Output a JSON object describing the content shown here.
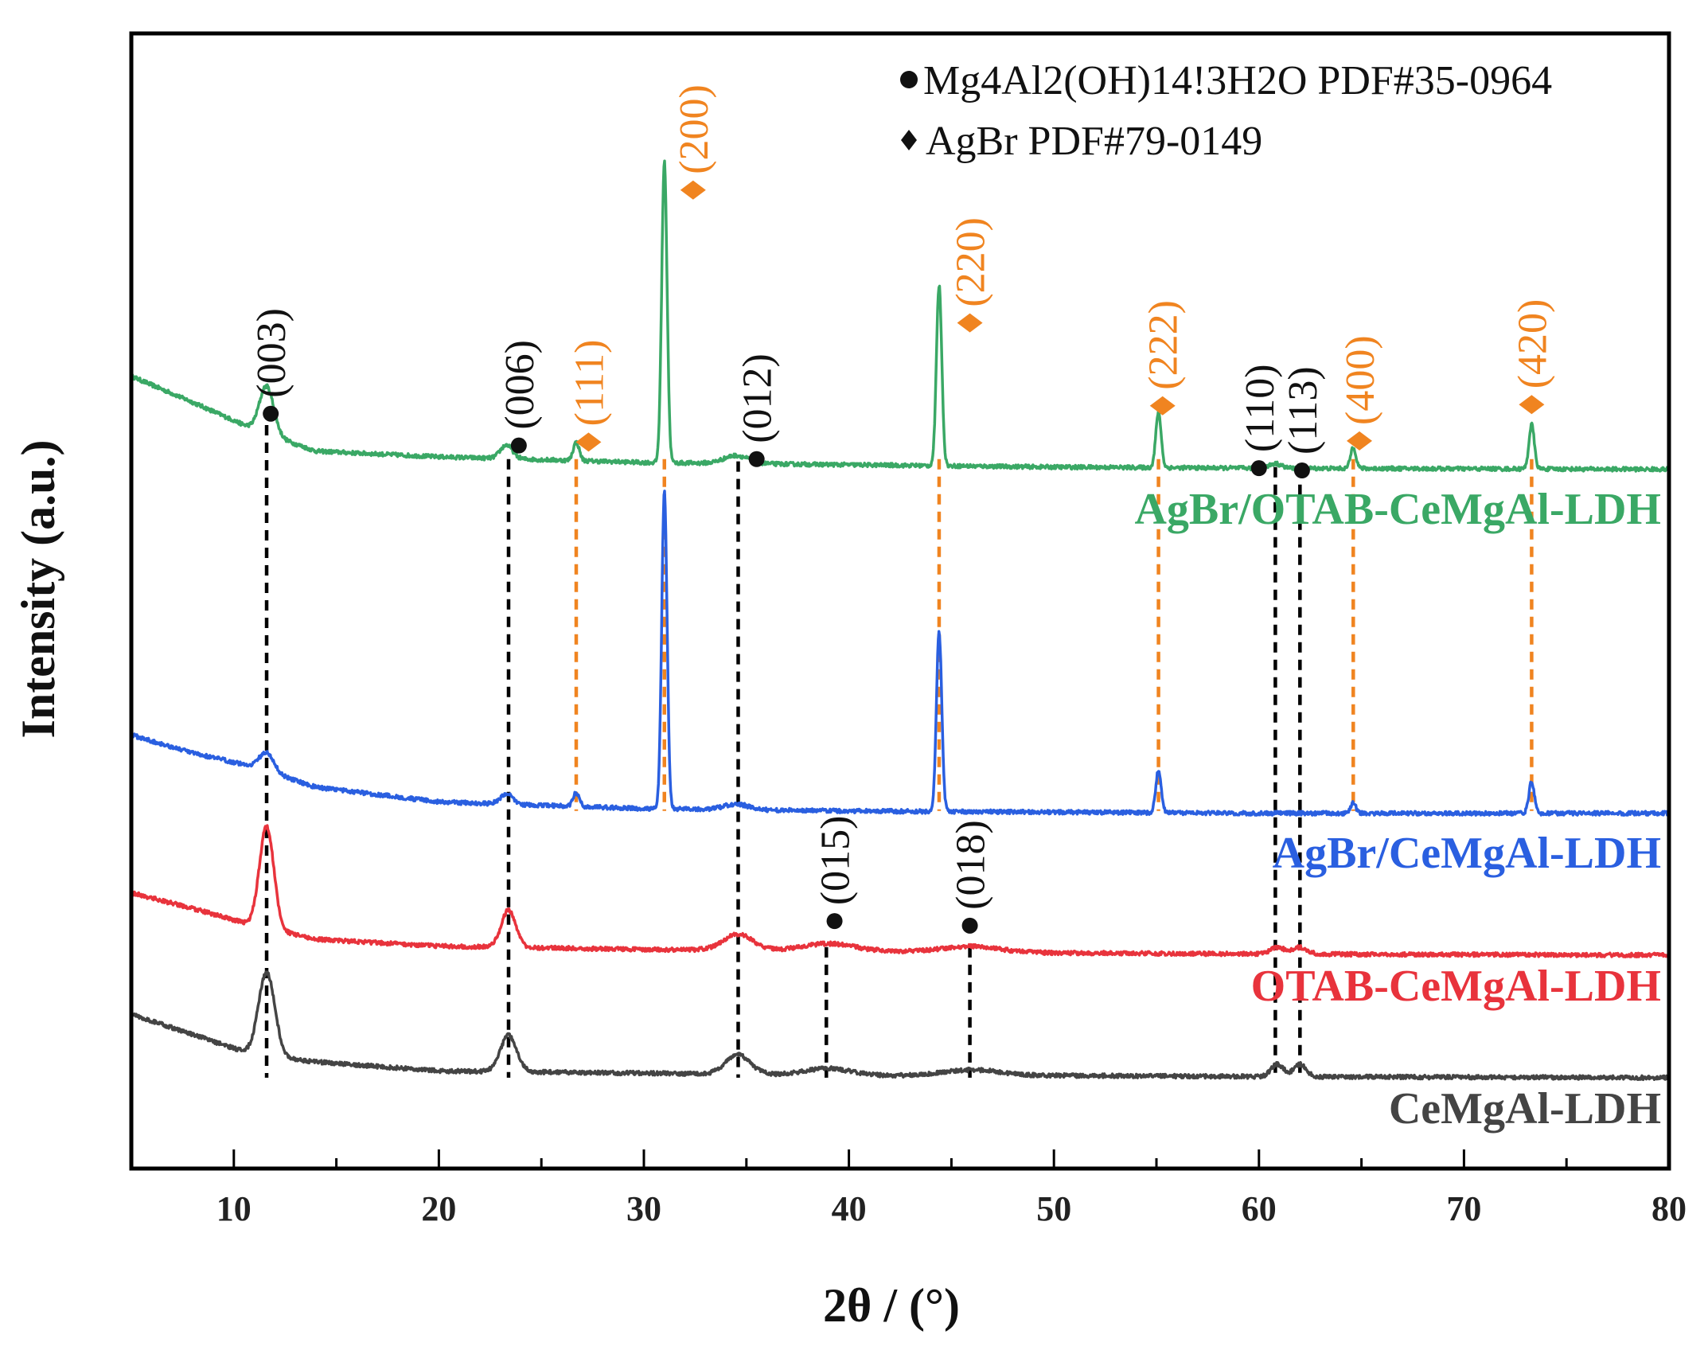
{
  "chart_data": {
    "type": "line",
    "title": "",
    "xlabel": "2θ / (°)",
    "ylabel": "Intensity (a.u.)",
    "xlim": [
      5,
      80
    ],
    "ylim": [
      0,
      100
    ],
    "xticks": [
      10,
      20,
      30,
      40,
      50,
      60,
      70,
      80
    ],
    "xtick_labels": [
      "10",
      "20",
      "30",
      "40",
      "50",
      "60",
      "70",
      "80"
    ],
    "grid": false,
    "legend": {
      "position": "top-right",
      "entries": [
        {
          "marker": "●",
          "text": "Mg4Al2(OH)14!3H2O PDF#35-0964"
        },
        {
          "marker": "◆",
          "text": "AgBr PDF#79-0149"
        }
      ]
    },
    "colors": {
      "AgBr/OTAB-CeMgAl-LDH": "#3aa865",
      "AgBr/CeMgAl-LDH": "#2a5fe0",
      "OTAB-CeMgAl-LDH": "#e8333c",
      "CeMgAl-LDH": "#444444",
      "ldh_marker": "#111111",
      "agbr_marker": "#f08420"
    },
    "series": [
      {
        "name": "AgBr/OTAB-CeMgAl-LDH",
        "baseline": [
          [
            5,
            69.8
          ],
          [
            8,
            67.5
          ],
          [
            11,
            65.1
          ],
          [
            14,
            63.2
          ],
          [
            20,
            62.7
          ],
          [
            30,
            62.2
          ],
          [
            40,
            62.0
          ],
          [
            50,
            61.8
          ],
          [
            60,
            61.7
          ],
          [
            80,
            61.6
          ]
        ],
        "peaks": [
          {
            "x": 11.6,
            "height": 4.2,
            "width": 0.35
          },
          {
            "x": 23.3,
            "height": 1.2,
            "width": 0.3
          },
          {
            "x": 26.7,
            "height": 1.6,
            "width": 0.15
          },
          {
            "x": 31.0,
            "height": 26.5,
            "width": 0.13
          },
          {
            "x": 34.5,
            "height": 0.7,
            "width": 0.6
          },
          {
            "x": 44.4,
            "height": 15.9,
            "width": 0.13
          },
          {
            "x": 55.1,
            "height": 4.9,
            "width": 0.13
          },
          {
            "x": 60.8,
            "height": 0.4,
            "width": 0.3
          },
          {
            "x": 64.6,
            "height": 1.9,
            "width": 0.13
          },
          {
            "x": 73.3,
            "height": 3.9,
            "width": 0.13
          }
        ]
      },
      {
        "name": "AgBr/CeMgAl-LDH",
        "baseline": [
          [
            5,
            38.2
          ],
          [
            8,
            36.6
          ],
          [
            11,
            35.4
          ],
          [
            14,
            33.6
          ],
          [
            20,
            32.3
          ],
          [
            30,
            31.7
          ],
          [
            40,
            31.5
          ],
          [
            50,
            31.4
          ],
          [
            60,
            31.3
          ],
          [
            80,
            31.3
          ]
        ],
        "peaks": [
          {
            "x": 11.6,
            "height": 1.6,
            "width": 0.35
          },
          {
            "x": 23.3,
            "height": 0.9,
            "width": 0.3
          },
          {
            "x": 26.7,
            "height": 1.2,
            "width": 0.15
          },
          {
            "x": 31.0,
            "height": 28.0,
            "width": 0.13
          },
          {
            "x": 34.5,
            "height": 0.5,
            "width": 0.6
          },
          {
            "x": 44.4,
            "height": 15.8,
            "width": 0.13
          },
          {
            "x": 55.1,
            "height": 3.8,
            "width": 0.13
          },
          {
            "x": 64.6,
            "height": 0.9,
            "width": 0.13
          },
          {
            "x": 73.3,
            "height": 2.8,
            "width": 0.13
          }
        ]
      },
      {
        "name": "OTAB-CeMgAl-LDH",
        "baseline": [
          [
            5,
            24.3
          ],
          [
            8,
            22.9
          ],
          [
            11,
            21.4
          ],
          [
            14,
            20.2
          ],
          [
            20,
            19.6
          ],
          [
            30,
            19.3
          ],
          [
            40,
            19.2
          ],
          [
            50,
            19.0
          ],
          [
            60,
            18.9
          ],
          [
            80,
            18.8
          ]
        ],
        "peaks": [
          {
            "x": 11.6,
            "height": 9.0,
            "width": 0.35
          },
          {
            "x": 23.4,
            "height": 3.3,
            "width": 0.35
          },
          {
            "x": 34.6,
            "height": 1.4,
            "width": 0.7
          },
          {
            "x": 39.0,
            "height": 0.6,
            "width": 1.2
          },
          {
            "x": 46.0,
            "height": 0.5,
            "width": 1.3
          },
          {
            "x": 60.9,
            "height": 0.6,
            "width": 0.35
          },
          {
            "x": 62.0,
            "height": 0.6,
            "width": 0.35
          }
        ]
      },
      {
        "name": "CeMgAl-LDH",
        "baseline": [
          [
            5,
            13.6
          ],
          [
            8,
            11.8
          ],
          [
            11,
            10.0
          ],
          [
            14,
            9.4
          ],
          [
            20,
            8.6
          ],
          [
            30,
            8.4
          ],
          [
            40,
            8.2
          ],
          [
            50,
            8.2
          ],
          [
            60,
            8.1
          ],
          [
            80,
            8.0
          ]
        ],
        "peaks": [
          {
            "x": 11.6,
            "height": 7.4,
            "width": 0.4
          },
          {
            "x": 23.4,
            "height": 3.2,
            "width": 0.4
          },
          {
            "x": 34.6,
            "height": 1.7,
            "width": 0.6
          },
          {
            "x": 39.0,
            "height": 0.6,
            "width": 1.1
          },
          {
            "x": 46.0,
            "height": 0.5,
            "width": 1.3
          },
          {
            "x": 60.9,
            "height": 1.1,
            "width": 0.3
          },
          {
            "x": 62.0,
            "height": 1.1,
            "width": 0.3
          }
        ]
      }
    ],
    "reference_lines": [
      {
        "x": 11.6,
        "phase": "LDH",
        "y_top": 65.5,
        "y_bottom": 8.0
      },
      {
        "x": 23.4,
        "phase": "LDH",
        "y_top": 62.5,
        "y_bottom": 8.0
      },
      {
        "x": 26.7,
        "phase": "AgBr",
        "y_top": 62.5,
        "y_bottom": 31.5
      },
      {
        "x": 31.0,
        "phase": "AgBr",
        "y_top": 62.5,
        "y_bottom": 31.5
      },
      {
        "x": 34.6,
        "phase": "LDH",
        "y_top": 62.3,
        "y_bottom": 8.0
      },
      {
        "x": 38.9,
        "phase": "LDH",
        "y_top": 19.5,
        "y_bottom": 8.0
      },
      {
        "x": 45.9,
        "phase": "LDH",
        "y_top": 19.5,
        "y_bottom": 8.0
      },
      {
        "x": 44.4,
        "phase": "AgBr",
        "y_top": 62.5,
        "y_bottom": 31.5
      },
      {
        "x": 55.1,
        "phase": "AgBr",
        "y_top": 62.5,
        "y_bottom": 31.5
      },
      {
        "x": 60.8,
        "phase": "LDH",
        "y_top": 61.8,
        "y_bottom": 8.0
      },
      {
        "x": 62.0,
        "phase": "LDH",
        "y_top": 61.8,
        "y_bottom": 8.0
      },
      {
        "x": 64.6,
        "phase": "AgBr",
        "y_top": 62.5,
        "y_bottom": 31.5
      },
      {
        "x": 73.3,
        "phase": "AgBr",
        "y_top": 62.5,
        "y_bottom": 31.5
      }
    ],
    "annotations": [
      {
        "text": "(003)",
        "phase": "LDH",
        "x": 11.8,
        "y": 66.5
      },
      {
        "text": "(006)",
        "phase": "LDH",
        "x": 23.9,
        "y": 63.7
      },
      {
        "text": "(111)",
        "phase": "AgBr",
        "x": 27.3,
        "y": 64.0
      },
      {
        "text": "(200)",
        "phase": "AgBr",
        "x": 32.4,
        "y": 86.2
      },
      {
        "text": "(012)",
        "phase": "LDH",
        "x": 35.5,
        "y": 62.5
      },
      {
        "text": "(220)",
        "phase": "AgBr",
        "x": 45.9,
        "y": 74.5
      },
      {
        "text": "(015)",
        "phase": "LDH",
        "x": 39.3,
        "y": 21.8
      },
      {
        "text": "(018)",
        "phase": "LDH",
        "x": 45.9,
        "y": 21.4
      },
      {
        "text": "(222)",
        "phase": "AgBr",
        "x": 55.3,
        "y": 67.2
      },
      {
        "text": "(110)",
        "phase": "LDH",
        "x": 60.0,
        "y": 61.7
      },
      {
        "text": "(113)",
        "phase": "LDH",
        "x": 62.1,
        "y": 61.5
      },
      {
        "text": "(400)",
        "phase": "AgBr",
        "x": 64.9,
        "y": 64.1
      },
      {
        "text": "(420)",
        "phase": "AgBr",
        "x": 73.3,
        "y": 67.3
      }
    ],
    "series_labels": [
      {
        "series": "AgBr/OTAB-CeMgAl-LDH",
        "text": "AgBr/OTAB-CeMgAl-LDH",
        "y": 56.8
      },
      {
        "series": "AgBr/CeMgAl-LDH",
        "text": "AgBr/CeMgAl-LDH",
        "y": 26.5
      },
      {
        "series": "OTAB-CeMgAl-LDH",
        "text": "OTAB-CeMgAl-LDH",
        "y": 14.8
      },
      {
        "series": "CeMgAl-LDH",
        "text": "CeMgAl-LDH",
        "y": 4.0
      }
    ]
  }
}
